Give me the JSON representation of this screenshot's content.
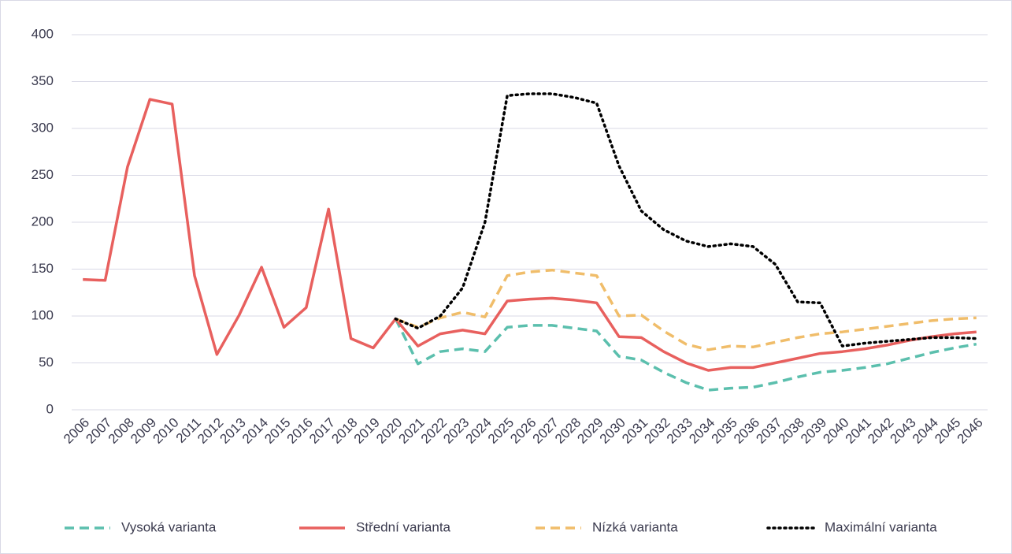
{
  "chart_data": {
    "type": "line",
    "categories": [
      "2006",
      "2007",
      "2008",
      "2009",
      "2010",
      "2011",
      "2012",
      "2013",
      "2014",
      "2015",
      "2016",
      "2017",
      "2018",
      "2019",
      "2020",
      "2021",
      "2022",
      "2023",
      "2024",
      "2025",
      "2026",
      "2027",
      "2028",
      "2029",
      "2030",
      "2031",
      "2032",
      "2033",
      "2034",
      "2035",
      "2036",
      "2037",
      "2038",
      "2039",
      "2040",
      "2041",
      "2042",
      "2043",
      "2044",
      "2045",
      "2046"
    ],
    "series": [
      {
        "name": "Vysoká varianta",
        "color": "#5bbfad",
        "dash": "dashed",
        "values": [
          null,
          null,
          null,
          null,
          null,
          null,
          null,
          null,
          null,
          null,
          null,
          null,
          null,
          null,
          97,
          49,
          62,
          65,
          62,
          88,
          90,
          90,
          87,
          84,
          57,
          53,
          40,
          29,
          21,
          23,
          24,
          29,
          35,
          40,
          42,
          45,
          49,
          55,
          61,
          66,
          70
        ]
      },
      {
        "name": "Střední varianta",
        "color": "#e8605e",
        "dash": "solid",
        "values": [
          139,
          138,
          259,
          331,
          326,
          143,
          59,
          101,
          152,
          88,
          109,
          214,
          76,
          66,
          97,
          68,
          81,
          85,
          81,
          116,
          118,
          119,
          117,
          114,
          78,
          77,
          62,
          50,
          42,
          45,
          45,
          50,
          55,
          60,
          62,
          65,
          69,
          74,
          78,
          81,
          83
        ]
      },
      {
        "name": "Nízká varianta",
        "color": "#f0bd6a",
        "dash": "dashed",
        "values": [
          null,
          null,
          null,
          null,
          null,
          null,
          null,
          null,
          null,
          null,
          null,
          null,
          null,
          null,
          97,
          88,
          98,
          104,
          99,
          143,
          147,
          149,
          146,
          143,
          100,
          101,
          84,
          70,
          64,
          68,
          67,
          72,
          77,
          81,
          83,
          86,
          89,
          92,
          95,
          97,
          98
        ]
      },
      {
        "name": "Maximální varianta",
        "color": "#000000",
        "dash": "dotted",
        "values": [
          null,
          null,
          null,
          null,
          null,
          null,
          null,
          null,
          null,
          null,
          null,
          null,
          null,
          null,
          97,
          87,
          100,
          130,
          200,
          335,
          337,
          337,
          333,
          327,
          260,
          212,
          192,
          180,
          174,
          177,
          174,
          155,
          115,
          114,
          68,
          71,
          73,
          75,
          77,
          77,
          76
        ]
      }
    ],
    "ylim": [
      0,
      400
    ],
    "yticks": [
      0,
      50,
      100,
      150,
      200,
      250,
      300,
      350,
      400
    ],
    "grid": true,
    "legend": "bottom"
  }
}
